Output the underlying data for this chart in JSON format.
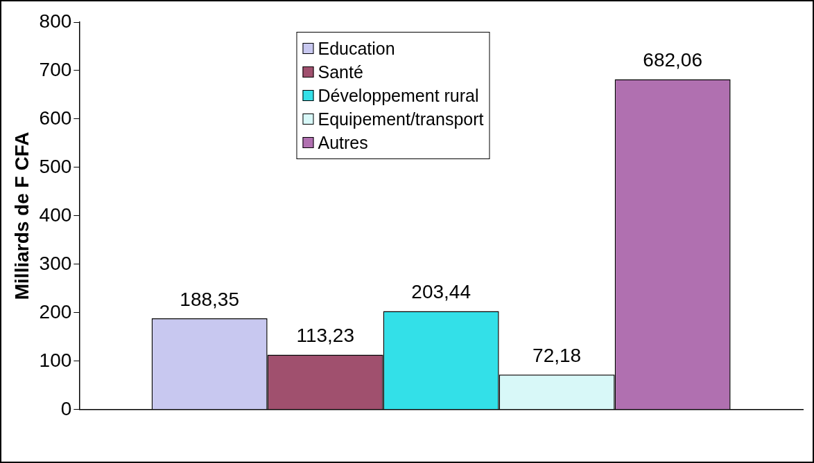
{
  "chart_data": {
    "type": "bar",
    "ylabel": "Milliards de F CFA",
    "categories": [
      null
    ],
    "ylim": [
      0,
      800
    ],
    "yticks": [
      0,
      100,
      200,
      300,
      400,
      500,
      600,
      700,
      800
    ],
    "legend": "top",
    "series": [
      {
        "name": "Education",
        "color": "#c8c8f0",
        "values": [
          188.35
        ],
        "value_labels": [
          "188,35"
        ]
      },
      {
        "name": "Santé",
        "color": "#a0506e",
        "values": [
          113.23
        ],
        "value_labels": [
          "113,23"
        ]
      },
      {
        "name": "Développement rural",
        "color": "#33e0e8",
        "values": [
          203.44
        ],
        "value_labels": [
          "203,44"
        ]
      },
      {
        "name": "Equipement/transport",
        "color": "#d8f8f8",
        "values": [
          72.18
        ],
        "value_labels": [
          "72,18"
        ]
      },
      {
        "name": "Autres",
        "color": "#b070b0",
        "values": [
          682.06
        ],
        "value_labels": [
          "682,06"
        ]
      }
    ]
  }
}
